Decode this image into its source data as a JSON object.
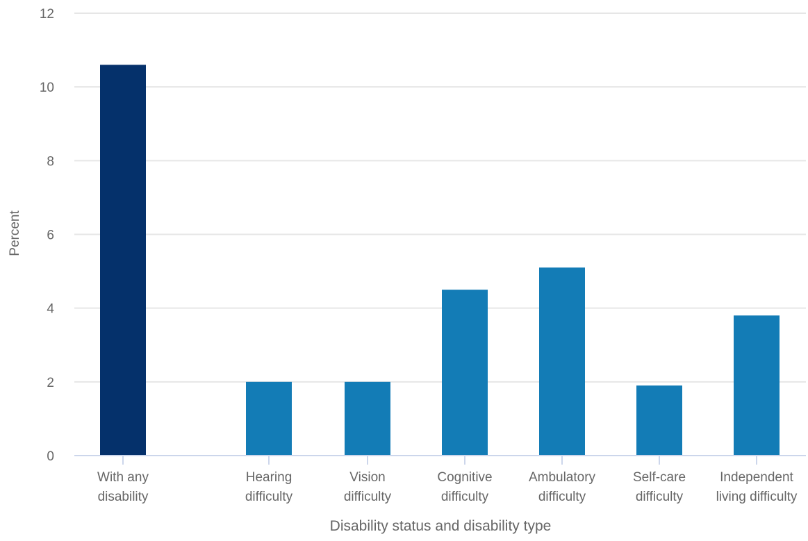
{
  "chart_data": {
    "type": "bar",
    "title": "",
    "xlabel": "Disability status and disability type",
    "ylabel": "Percent",
    "ylim": [
      0,
      12
    ],
    "yticks": [
      0,
      2,
      4,
      6,
      8,
      10,
      12
    ],
    "grid": true,
    "legend": "none",
    "categories": [
      [
        "With any",
        "disability"
      ],
      [
        "Hearing",
        "difficulty"
      ],
      [
        "Vision",
        "difficulty"
      ],
      [
        "Cognitive",
        "difficulty"
      ],
      [
        "Ambulatory",
        "difficulty"
      ],
      [
        "Self-care",
        "difficulty"
      ],
      [
        "Independent",
        "living difficulty"
      ]
    ],
    "values": [
      10.6,
      2.0,
      2.0,
      4.5,
      5.1,
      1.9,
      3.8
    ],
    "colors": {
      "highlight": "#05316b",
      "bar": "#137cb6",
      "grid": "#e6e6e6",
      "axis": "#ccd6eb",
      "text": "#666666"
    }
  }
}
